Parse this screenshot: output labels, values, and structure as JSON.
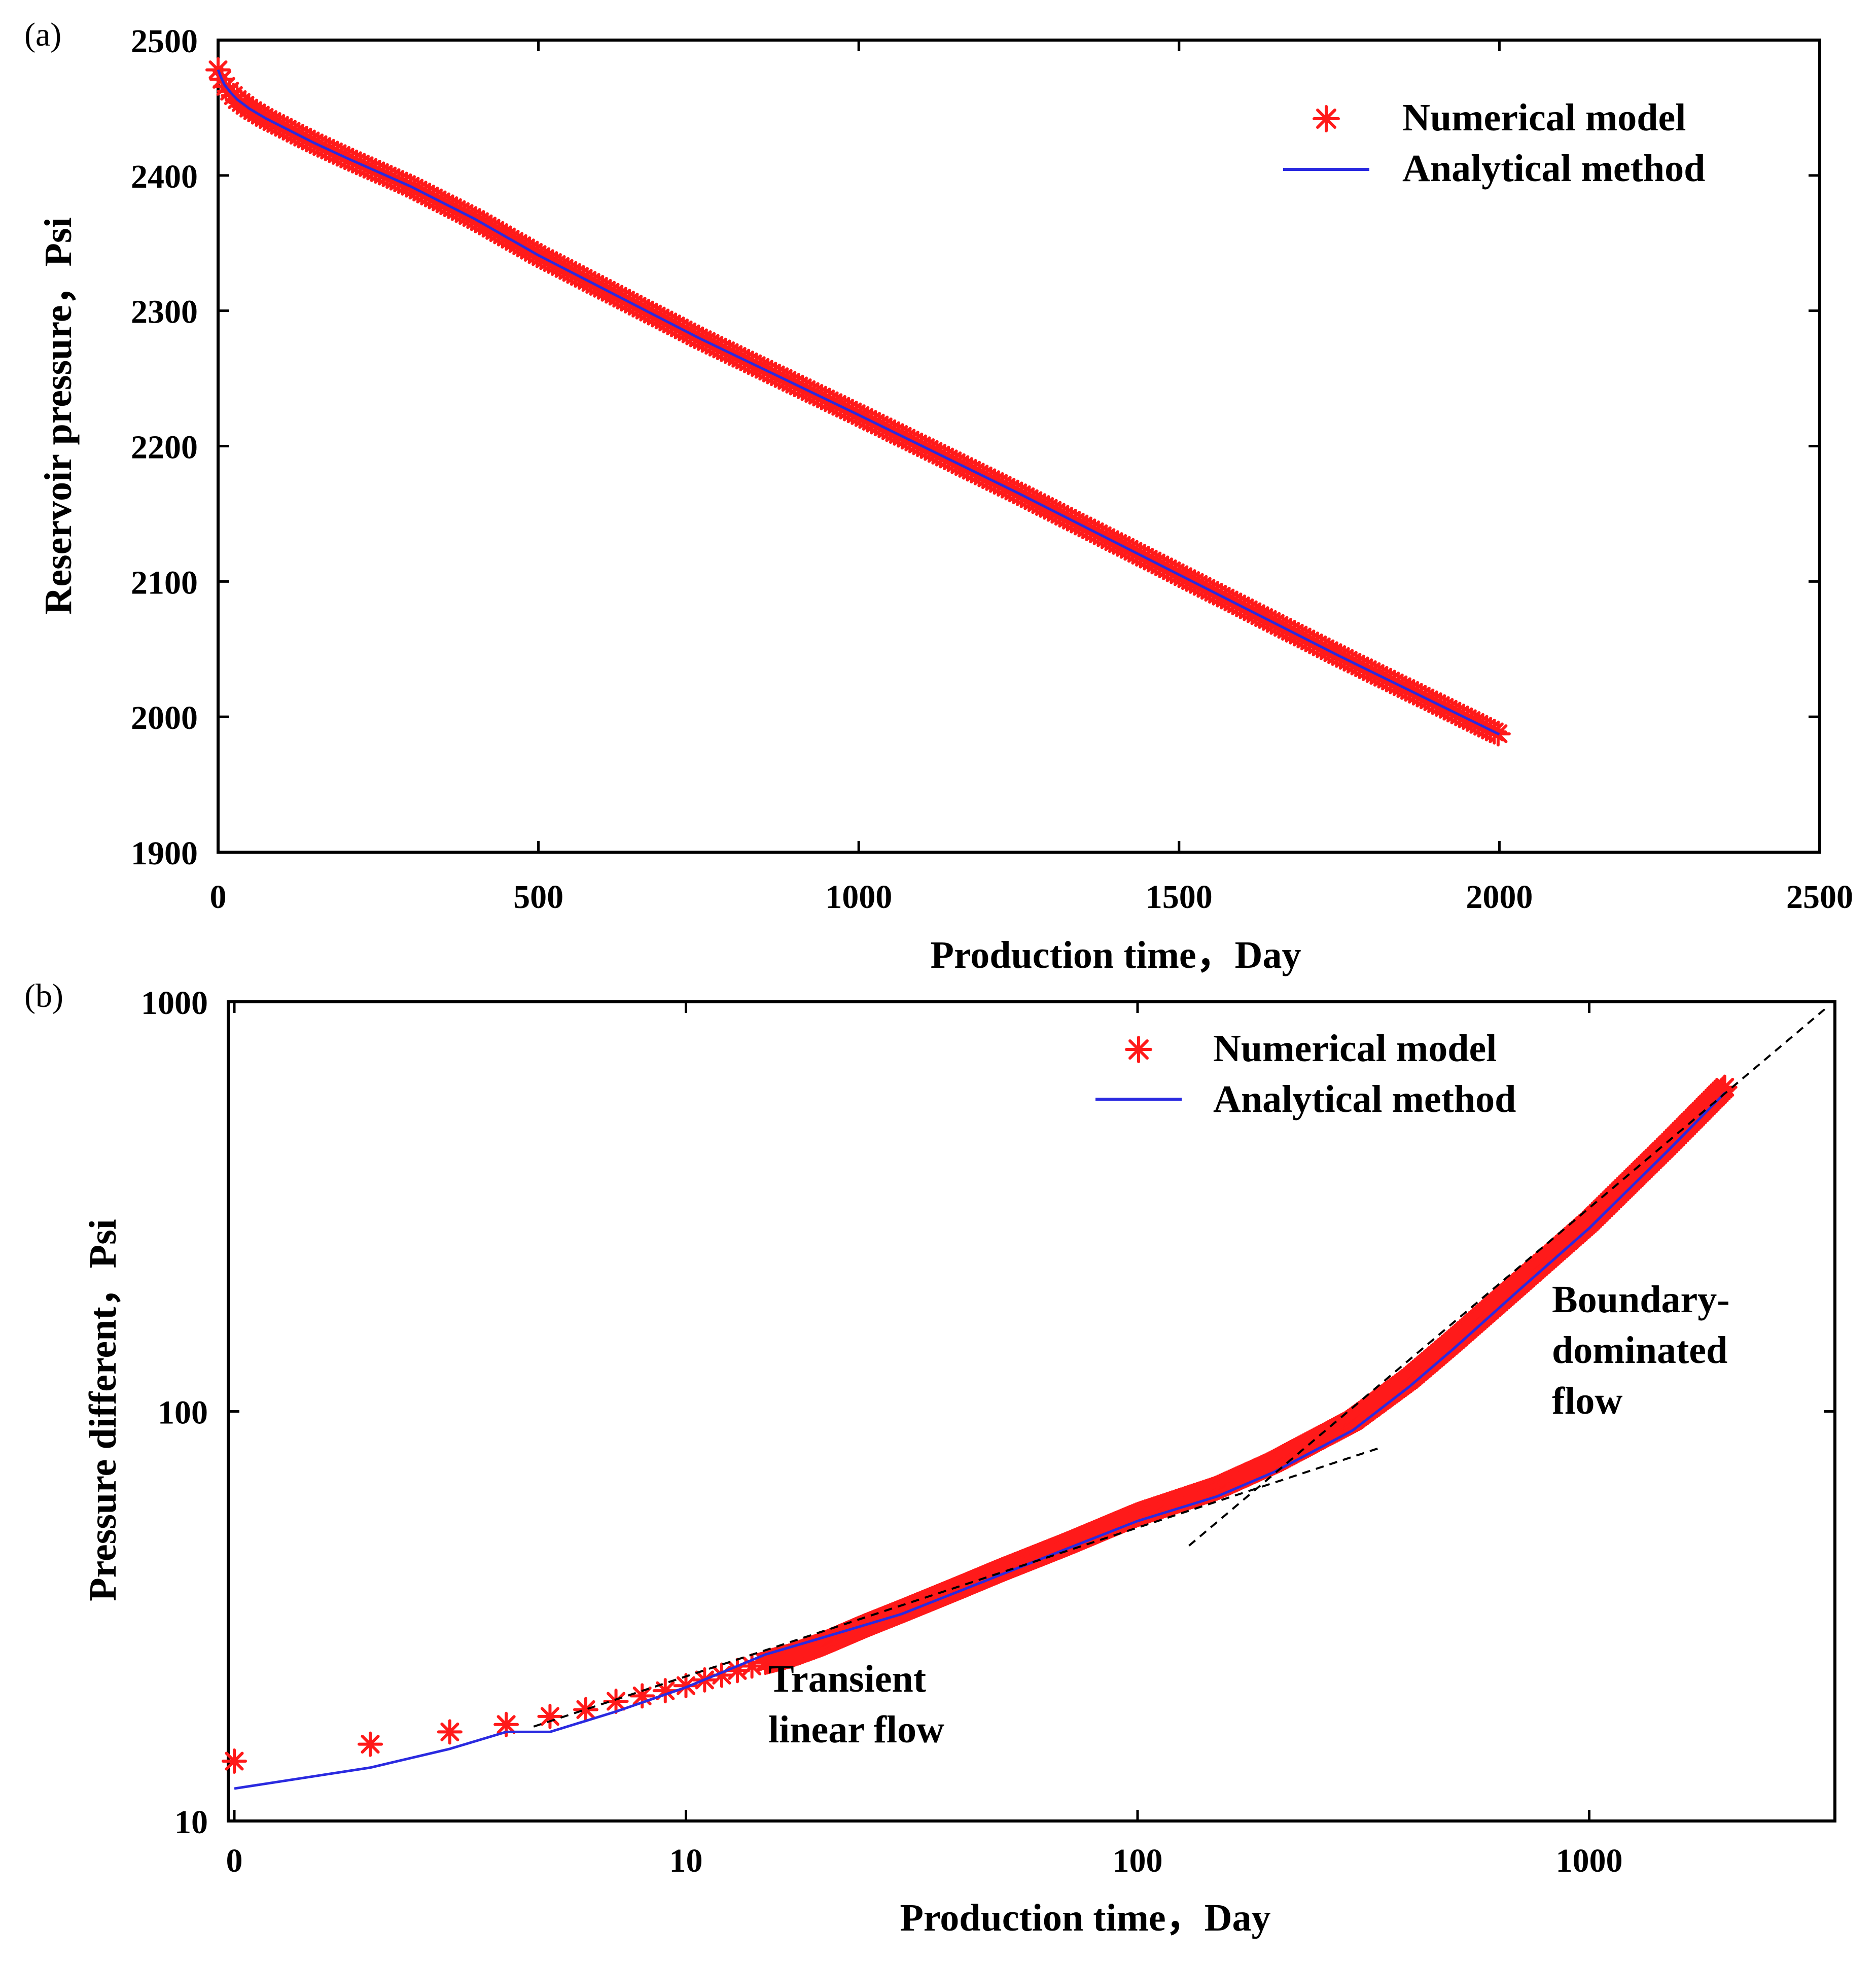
{
  "chart_data": [
    {
      "panel_label": "(a)",
      "type": "line",
      "xlabel": "Production time，Day",
      "ylabel": "Reservoir pressure，Psi",
      "xlim": [
        0,
        2500
      ],
      "ylim": [
        1900,
        2500
      ],
      "x_ticks": [
        "0",
        "500",
        "1000",
        "1500",
        "2000",
        "2500"
      ],
      "y_ticks": [
        "1900",
        "2000",
        "2100",
        "2200",
        "2300",
        "2400",
        "2500"
      ],
      "legend_position": "top-right",
      "series": [
        {
          "name": "Numerical model",
          "style": "markers",
          "color": "#ff1a1a",
          "x": [
            0,
            5,
            10,
            20,
            30,
            50,
            75,
            100,
            150,
            200,
            300,
            400,
            500,
            750,
            1000,
            1250,
            1500,
            1750,
            2000
          ],
          "values": [
            2478,
            2472,
            2467,
            2461,
            2456,
            2449,
            2442,
            2436,
            2424,
            2413,
            2392,
            2368,
            2341,
            2280,
            2223,
            2165,
            2105,
            2045,
            1987
          ]
        },
        {
          "name": "Analytical method",
          "style": "line",
          "color": "#2a2ae0",
          "x": [
            0,
            5,
            10,
            20,
            30,
            50,
            75,
            100,
            150,
            200,
            300,
            400,
            500,
            750,
            1000,
            1250,
            1500,
            1750,
            2000
          ],
          "values": [
            2478,
            2472,
            2467,
            2461,
            2456,
            2449,
            2442,
            2436,
            2424,
            2413,
            2392,
            2368,
            2341,
            2280,
            2223,
            2165,
            2105,
            2045,
            1987
          ]
        }
      ]
    },
    {
      "panel_label": "(b)",
      "type": "line",
      "scale": "log-log",
      "xlabel": "Production time，Day",
      "ylabel": "Pressure different，Psi",
      "xlim": [
        1,
        3500
      ],
      "ylim": [
        10,
        1000
      ],
      "x_ticks": [
        "0",
        "10",
        "100",
        "1000"
      ],
      "y_ticks": [
        "10",
        "100",
        "1000"
      ],
      "legend_position": "top-right",
      "annotations": [
        "Transient linear flow",
        "Boundary-dominated flow"
      ],
      "annotation_lines": {
        "transient_linear_flow": [
          "Transient",
          "linear flow"
        ],
        "boundary_dominated_flow": [
          "Boundary-",
          "dominated",
          "flow"
        ]
      },
      "series": [
        {
          "name": "Numerical model",
          "style": "markers",
          "color": "#ff1a1a",
          "x": [
            1,
            2,
            3,
            4,
            5,
            6,
            7,
            8,
            9,
            10,
            11,
            12,
            13,
            14,
            15,
            17,
            20,
            25,
            30,
            40,
            50,
            70,
            100,
            150,
            200,
            300,
            400,
            500,
            700,
            1000,
            1500,
            2000
          ],
          "values": [
            14.0,
            15.4,
            16.5,
            17.2,
            18.0,
            18.7,
            19.6,
            20.2,
            20.8,
            21.4,
            22.1,
            22.7,
            23.3,
            23.9,
            24.4,
            25.3,
            27.0,
            30.0,
            32.5,
            37.0,
            41.0,
            47.5,
            56.0,
            65.0,
            75.0,
            95.0,
            120.0,
            148.0,
            205.0,
            290.0,
            450.0,
            620.0
          ]
        },
        {
          "name": "Analytical method",
          "style": "line",
          "color": "#2a2ae0",
          "x": [
            1,
            2,
            3,
            4,
            5,
            7,
            10,
            15,
            20,
            30,
            50,
            100,
            150,
            200,
            300,
            400,
            500,
            700,
            1000,
            1500,
            2000
          ],
          "values": [
            12.0,
            13.5,
            15.0,
            16.5,
            16.5,
            18.5,
            21.2,
            25.5,
            28.0,
            32.0,
            40.0,
            54.0,
            62.0,
            71.0,
            90.0,
            115.0,
            142.0,
            198.0,
            280.0,
            435.0,
            600.0
          ]
        },
        {
          "name": "Transient linear flow trend",
          "style": "dashed",
          "color": "#000000",
          "x": [
            4.6,
            350
          ],
          "values": [
            17.0,
            82.0
          ]
        },
        {
          "name": "Boundary-dominated flow trend",
          "style": "dashed",
          "color": "#000000",
          "x": [
            130,
            3400
          ],
          "values": [
            47.0,
            980.0
          ]
        }
      ]
    }
  ]
}
